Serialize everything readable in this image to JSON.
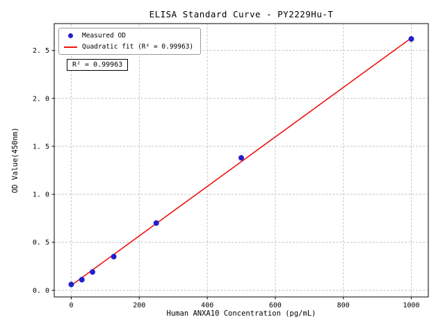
{
  "chart_data": {
    "type": "scatter",
    "title": "ELISA Standard Curve - PY2229Hu-T",
    "xlabel": "Human ANXA10 Concentration (pg/mL)",
    "ylabel": "OD Value(450nm)",
    "xlim": [
      -50,
      1050
    ],
    "ylim": [
      -0.07,
      2.78
    ],
    "xticks": [
      0,
      200,
      400,
      600,
      800,
      1000
    ],
    "xtick_labels": [
      "0",
      "200",
      "400",
      "600",
      "800",
      "1000"
    ],
    "yticks": [
      0.0,
      0.5,
      1.0,
      1.5,
      2.0,
      2.5
    ],
    "ytick_labels": [
      "0. 0",
      "0. 5",
      "1. 0",
      "1. 5",
      "2. 0",
      "2. 5"
    ],
    "grid": true,
    "grid_color": "#b8b8b8",
    "axes_color": "#000000",
    "background_color": "#ffffff",
    "legend_position": "upper-left",
    "annotation": "R² = 0.99963",
    "series": [
      {
        "name": "Measured OD",
        "kind": "scatter",
        "color": "#2020cd",
        "marker_size": 4,
        "x": [
          0,
          31.25,
          62.5,
          125,
          250,
          500,
          1000
        ],
        "y": [
          0.06,
          0.11,
          0.19,
          0.35,
          0.7,
          1.38,
          2.62
        ]
      },
      {
        "name": "Quadratic fit (R² = 0.99963)",
        "kind": "line",
        "color": "#ee1111",
        "line_width": 1.6,
        "x": [
          0,
          1000
        ],
        "y": [
          0.05,
          2.63
        ]
      }
    ]
  }
}
